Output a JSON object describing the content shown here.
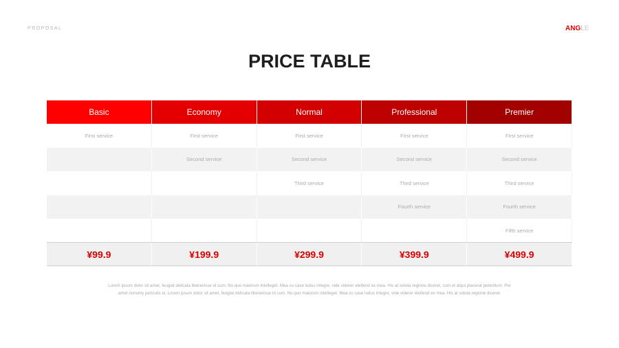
{
  "header": {
    "label": "PROPOSAL",
    "logo_main": "ANG",
    "logo_rest": "LE",
    "title": "PRICE TABLE"
  },
  "colors": {
    "accent": "#e00000",
    "plans": [
      "#fe0000",
      "#e40000",
      "#d20000",
      "#bd0000",
      "#a30000"
    ]
  },
  "plans": [
    {
      "name": "Basic",
      "services": [
        "First service",
        "",
        "",
        "",
        ""
      ],
      "price": "¥99.9"
    },
    {
      "name": "Economy",
      "services": [
        "First service",
        "Second service",
        "",
        "",
        ""
      ],
      "price": "¥199.9"
    },
    {
      "name": "Normal",
      "services": [
        "First service",
        "Second service",
        "Third service",
        "",
        ""
      ],
      "price": "¥299.9"
    },
    {
      "name": "Professional",
      "services": [
        "First service",
        "Second service",
        "Third service",
        "Fourth service",
        ""
      ],
      "price": "¥399.9"
    },
    {
      "name": "Premier",
      "services": [
        "First service",
        "Second service",
        "Third service",
        "Fourth service",
        "Fifth service"
      ],
      "price": "¥499.9"
    }
  ],
  "description": "Lorem ipsum dolor sit amet, feugiat delicata liberavisse id cum. No quo maiorum intelleget. Mea cu case ludus integre, vide viderer eleifend ex mea. His at soluta regione diceret, cum et atqui placerat petentium. Per amet nonumy periculis ei. Lorem ipsum dolor sit amet, feugiat delicata liberavisse id cum. No quo maiorum intelleget. Mea cu case ludus integre, vide viderer eleifend ex mea. His at soluta regione diceret."
}
